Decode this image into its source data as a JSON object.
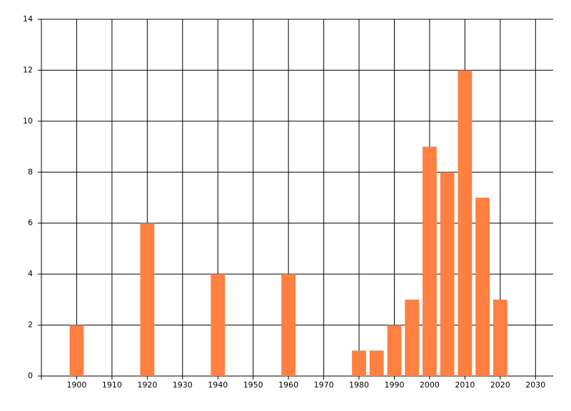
{
  "chart_data": {
    "type": "bar",
    "x": [
      1900,
      1920,
      1940,
      1960,
      1980,
      1985,
      1990,
      1995,
      2000,
      2005,
      2010,
      2015,
      2020
    ],
    "values": [
      2,
      6,
      4,
      4,
      1,
      1,
      2,
      3,
      9,
      8,
      12,
      7,
      3
    ],
    "color": "#ff8040",
    "xlim": [
      1890,
      2035
    ],
    "xticks": [
      1900,
      1910,
      1920,
      1930,
      1940,
      1950,
      1960,
      1970,
      1980,
      1990,
      2000,
      2010,
      2020,
      2030
    ],
    "ylim": [
      0,
      14
    ],
    "yticks": [
      0,
      2,
      4,
      6,
      8,
      10,
      12,
      14
    ],
    "grid": true
  }
}
